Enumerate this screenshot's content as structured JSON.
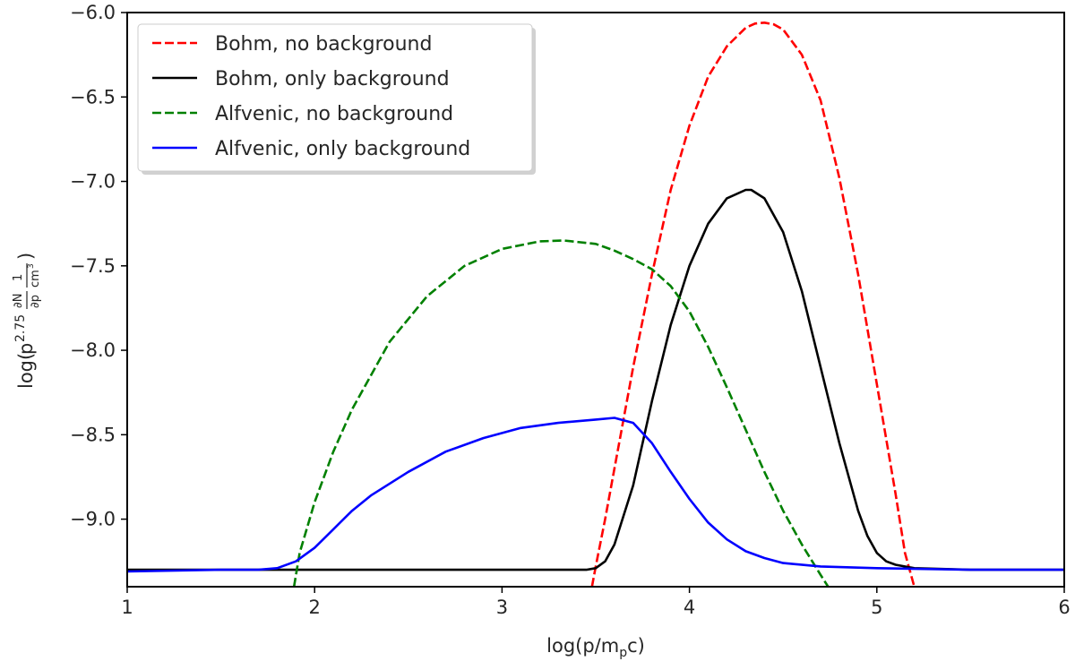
{
  "chart_data": {
    "type": "line",
    "title": "",
    "xlabel": {
      "main": "log(p/m",
      "sub": "p",
      "end": "c)"
    },
    "ylabel": {
      "pre": "log(",
      "p": "p",
      "exp": "2.75",
      "frac1_num": "∂N",
      "frac1_den": "∂p",
      "frac2_num": "1",
      "frac2_den": "cm",
      "frac2_den_sup": "3",
      "post": ")"
    },
    "xlim": [
      1,
      6
    ],
    "ylim": [
      -9.4,
      -6.0
    ],
    "xticks": [
      {
        "v": 1,
        "label": "1"
      },
      {
        "v": 2,
        "label": "2"
      },
      {
        "v": 3,
        "label": "3"
      },
      {
        "v": 4,
        "label": "4"
      },
      {
        "v": 5,
        "label": "5"
      },
      {
        "v": 6,
        "label": "6"
      }
    ],
    "yticks": [
      {
        "v": -6.0,
        "label": "−6.0"
      },
      {
        "v": -6.5,
        "label": "−6.5"
      },
      {
        "v": -7.0,
        "label": "−7.0"
      },
      {
        "v": -7.5,
        "label": "−7.5"
      },
      {
        "v": -8.0,
        "label": "−8.0"
      },
      {
        "v": -8.5,
        "label": "−8.5"
      },
      {
        "v": -9.0,
        "label": "−9.0"
      }
    ],
    "grid": false,
    "legend_position": "top-left",
    "series": [
      {
        "name": "Bohm, no background",
        "color": "#ff0000",
        "style": "dashed",
        "x": [
          3.48,
          3.5,
          3.55,
          3.6,
          3.7,
          3.8,
          3.9,
          4.0,
          4.1,
          4.2,
          4.3,
          4.35,
          4.4,
          4.45,
          4.5,
          4.6,
          4.7,
          4.8,
          4.9,
          5.0,
          5.1,
          5.15,
          5.2
        ],
        "y": [
          -9.4,
          -9.28,
          -9.0,
          -8.7,
          -8.1,
          -7.55,
          -7.05,
          -6.67,
          -6.38,
          -6.2,
          -6.09,
          -6.065,
          -6.06,
          -6.07,
          -6.1,
          -6.25,
          -6.52,
          -6.98,
          -7.55,
          -8.2,
          -8.85,
          -9.2,
          -9.4
        ]
      },
      {
        "name": "Bohm, only background",
        "color": "#000000",
        "style": "solid",
        "x": [
          1.0,
          2.0,
          3.0,
          3.4,
          3.45,
          3.5,
          3.55,
          3.6,
          3.7,
          3.8,
          3.9,
          4.0,
          4.1,
          4.2,
          4.3,
          4.33,
          4.4,
          4.5,
          4.6,
          4.7,
          4.8,
          4.9,
          4.95,
          5.0,
          5.05,
          5.1,
          5.2,
          5.5,
          6.0
        ],
        "y": [
          -9.3,
          -9.3,
          -9.3,
          -9.3,
          -9.3,
          -9.29,
          -9.25,
          -9.15,
          -8.8,
          -8.3,
          -7.85,
          -7.5,
          -7.25,
          -7.1,
          -7.05,
          -7.05,
          -7.1,
          -7.3,
          -7.65,
          -8.1,
          -8.55,
          -8.95,
          -9.1,
          -9.2,
          -9.25,
          -9.27,
          -9.29,
          -9.3,
          -9.3
        ]
      },
      {
        "name": "Alfvenic, no background",
        "color": "#008000",
        "style": "dashed",
        "x": [
          1.89,
          1.92,
          2.0,
          2.1,
          2.2,
          2.4,
          2.6,
          2.8,
          3.0,
          3.2,
          3.33,
          3.5,
          3.6,
          3.7,
          3.8,
          3.9,
          4.0,
          4.1,
          4.2,
          4.3,
          4.4,
          4.5,
          4.6,
          4.7,
          4.74
        ],
        "y": [
          -9.4,
          -9.2,
          -8.9,
          -8.6,
          -8.35,
          -7.95,
          -7.68,
          -7.5,
          -7.4,
          -7.355,
          -7.35,
          -7.37,
          -7.41,
          -7.46,
          -7.52,
          -7.62,
          -7.77,
          -7.98,
          -8.22,
          -8.47,
          -8.72,
          -8.95,
          -9.15,
          -9.33,
          -9.4
        ]
      },
      {
        "name": "Alfvenic, only background",
        "color": "#0000ff",
        "style": "solid",
        "x": [
          1.0,
          1.5,
          1.7,
          1.8,
          1.9,
          2.0,
          2.1,
          2.2,
          2.3,
          2.5,
          2.7,
          2.9,
          3.1,
          3.3,
          3.5,
          3.6,
          3.7,
          3.8,
          3.9,
          4.0,
          4.1,
          4.2,
          4.3,
          4.4,
          4.5,
          4.7,
          5.0,
          5.5,
          6.0
        ],
        "y": [
          -9.31,
          -9.3,
          -9.3,
          -9.29,
          -9.25,
          -9.17,
          -9.06,
          -8.95,
          -8.86,
          -8.72,
          -8.6,
          -8.52,
          -8.46,
          -8.43,
          -8.41,
          -8.4,
          -8.43,
          -8.55,
          -8.72,
          -8.88,
          -9.02,
          -9.12,
          -9.19,
          -9.23,
          -9.26,
          -9.28,
          -9.29,
          -9.3,
          -9.3
        ]
      }
    ]
  }
}
